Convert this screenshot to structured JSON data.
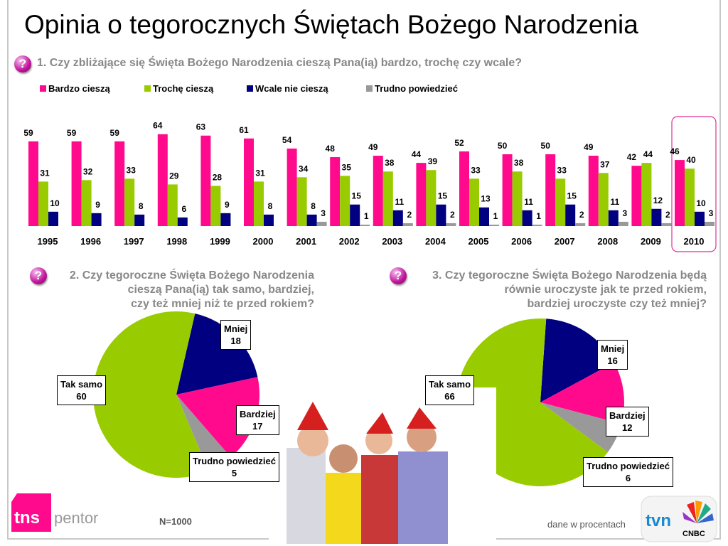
{
  "title": "Opinia o tegorocznych Świętach Bożego Narodzenia",
  "q1": "1. Czy zbliżające się Święta Bożego Narodzenia cieszą Pana(ią) bardzo, trochę czy wcale?",
  "q2": [
    "2. Czy tegoroczne Święta Bożego Narodzenia",
    "cieszą Pana(ią) tak samo, bardziej,",
    "czy też mniej niż te przed rokiem?"
  ],
  "q3": [
    "3. Czy tegoroczne Święta Bożego Narodzenia będą",
    "równie uroczyste jak te przed rokiem,",
    "bardziej uroczyste czy też mniej?"
  ],
  "question_icon": "?",
  "footer": {
    "n": "N=1000",
    "note": "dane w procentach",
    "logo_left": "tns pentor",
    "logo_right": "tvn CNBC"
  },
  "chart_data": [
    {
      "type": "bar",
      "highlighted_category": "2010",
      "categories": [
        "1995",
        "1996",
        "1997",
        "1998",
        "1999",
        "2000",
        "2001",
        "2002",
        "2003",
        "2004",
        "2005",
        "2006",
        "2007",
        "2008",
        "2009",
        "2010"
      ],
      "series": [
        {
          "name": "Bardzo cieszą",
          "color": "#ff0a8c",
          "values": [
            59,
            59,
            59,
            64,
            63,
            61,
            54,
            48,
            49,
            44,
            52,
            50,
            50,
            49,
            42,
            46
          ]
        },
        {
          "name": "Trochę cieszą",
          "color": "#99cc00",
          "values": [
            31,
            32,
            33,
            29,
            28,
            31,
            34,
            35,
            38,
            39,
            33,
            38,
            33,
            37,
            44,
            40
          ]
        },
        {
          "name": "Wcale nie cieszą",
          "color": "#000080",
          "values": [
            10,
            9,
            8,
            6,
            9,
            8,
            8,
            15,
            11,
            15,
            13,
            11,
            15,
            11,
            12,
            10
          ]
        },
        {
          "name": "Trudno powiedzieć",
          "color": "#999999",
          "values": [
            null,
            null,
            null,
            null,
            null,
            null,
            3,
            1,
            2,
            2,
            1,
            1,
            2,
            3,
            2,
            3
          ]
        }
      ],
      "legend": "top"
    },
    {
      "type": "pie",
      "slices": [
        {
          "label": "Mniej",
          "value": 18,
          "color": "#000080"
        },
        {
          "label": "Bardziej",
          "value": 17,
          "color": "#ff0a8c"
        },
        {
          "label": "Trudno powiedzieć",
          "value": 5,
          "color": "#999999"
        },
        {
          "label": "Tak samo",
          "value": 60,
          "color": "#99cc00"
        }
      ]
    },
    {
      "type": "pie",
      "slices": [
        {
          "label": "Mniej",
          "value": 16,
          "color": "#000080"
        },
        {
          "label": "Bardziej",
          "value": 12,
          "color": "#ff0a8c"
        },
        {
          "label": "Trudno powiedzieć",
          "value": 6,
          "color": "#999999"
        },
        {
          "label": "Tak samo",
          "value": 66,
          "color": "#99cc00"
        }
      ]
    }
  ]
}
